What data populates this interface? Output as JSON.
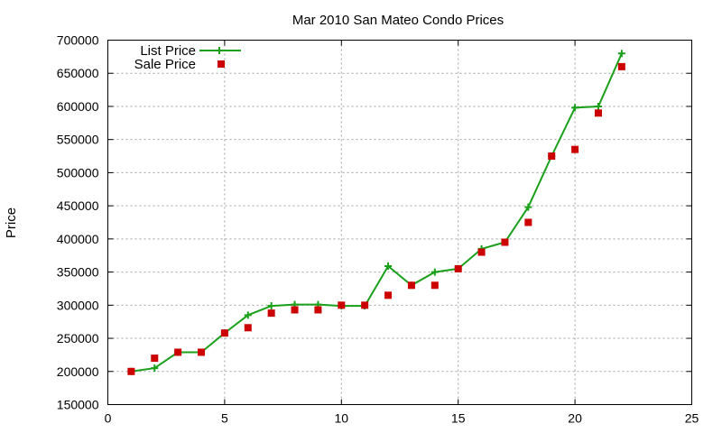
{
  "chart_data": {
    "type": "line",
    "title": "Mar 2010 San Mateo Condo Prices",
    "xlabel": "",
    "ylabel": "Price",
    "xlim": [
      0,
      25
    ],
    "ylim": [
      150000,
      700000
    ],
    "x_ticks": [
      0,
      5,
      10,
      15,
      20,
      25
    ],
    "y_ticks": [
      150000,
      200000,
      250000,
      300000,
      350000,
      400000,
      450000,
      500000,
      550000,
      600000,
      650000,
      700000
    ],
    "grid": true,
    "legend_position": "top-left",
    "x": [
      1,
      2,
      3,
      4,
      5,
      6,
      7,
      8,
      9,
      10,
      11,
      12,
      13,
      14,
      15,
      16,
      17,
      18,
      19,
      20,
      21,
      22
    ],
    "series": [
      {
        "name": "List Price",
        "style": "line-with-plus-markers",
        "color": "#1aa01a",
        "values": [
          200000,
          205000,
          229000,
          229000,
          258000,
          285000,
          299000,
          301000,
          301000,
          299000,
          299000,
          359000,
          330000,
          350000,
          355000,
          385000,
          395000,
          448000,
          525000,
          598000,
          600000,
          680000
        ]
      },
      {
        "name": "Sale Price",
        "style": "square-markers",
        "color": "#cc0000",
        "values": [
          200000,
          220000,
          229000,
          229000,
          258000,
          266000,
          288000,
          293000,
          293000,
          300000,
          300000,
          315000,
          330000,
          330000,
          355000,
          380000,
          395000,
          425000,
          525000,
          535000,
          590000,
          660000
        ]
      }
    ]
  }
}
